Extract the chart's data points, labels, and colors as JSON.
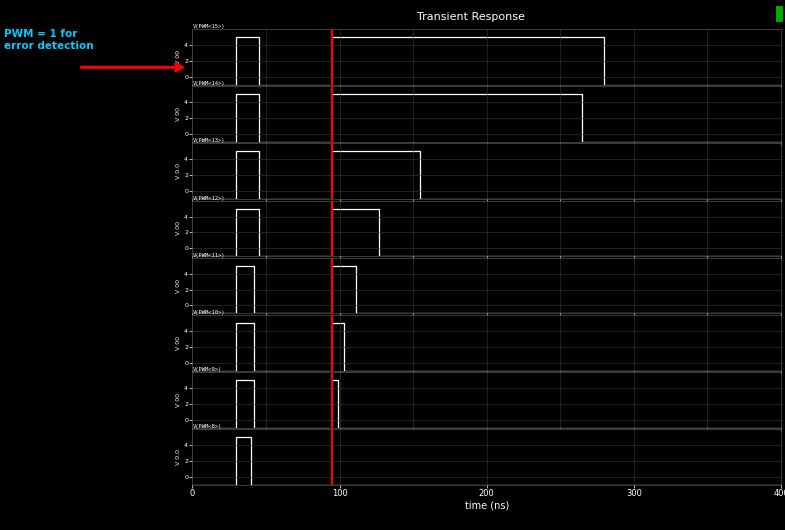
{
  "title": "Transient Response",
  "xlabel": "time (ns)",
  "background_color": "#000000",
  "plot_bg_color": "#000000",
  "signal_color": "#ffffff",
  "grid_color": "#3a3a3a",
  "x_min": 0,
  "x_max": 400,
  "red_line_x": 95,
  "annotation_text": "PWM = 1 for\nerror detection",
  "arrow_color": "#ff0000",
  "title_color": "#ffffff",
  "label_color": "#ffffff",
  "annot_color": "#00ccff",
  "green_box_color": "#00aa00",
  "subplots": [
    {
      "label": "V(PWM<15>)",
      "ylabel": "V 00",
      "y_min": -1,
      "y_max": 6,
      "yticks": [
        0,
        2,
        4
      ],
      "pulses": [
        {
          "start": 30,
          "end": 45,
          "low": -1,
          "high": 5
        },
        {
          "start": 95,
          "end": 280,
          "low": -1,
          "high": 5
        }
      ]
    },
    {
      "label": "V(PWM<14>)",
      "ylabel": "V 00",
      "y_min": -1,
      "y_max": 6,
      "yticks": [
        0,
        2,
        4
      ],
      "pulses": [
        {
          "start": 30,
          "end": 45,
          "low": -1,
          "high": 5
        },
        {
          "start": 95,
          "end": 265,
          "low": -1,
          "high": 5
        }
      ]
    },
    {
      "label": "V(PWM<13>)",
      "ylabel": "V 0.0",
      "y_min": -1,
      "y_max": 6,
      "yticks": [
        0,
        2,
        4
      ],
      "pulses": [
        {
          "start": 30,
          "end": 45,
          "low": -1,
          "high": 5
        },
        {
          "start": 95,
          "end": 155,
          "low": -1,
          "high": 5
        }
      ]
    },
    {
      "label": "V(PWM<12>)",
      "ylabel": "V 00",
      "y_min": -1,
      "y_max": 6,
      "yticks": [
        0,
        2,
        4
      ],
      "pulses": [
        {
          "start": 30,
          "end": 45,
          "low": -1,
          "high": 5
        },
        {
          "start": 95,
          "end": 127,
          "low": -1,
          "high": 5
        }
      ]
    },
    {
      "label": "V(PWM<11>)",
      "ylabel": "V 00",
      "y_min": -1,
      "y_max": 6,
      "yticks": [
        0,
        2,
        4
      ],
      "pulses": [
        {
          "start": 30,
          "end": 42,
          "low": -1,
          "high": 5
        },
        {
          "start": 95,
          "end": 111,
          "low": -1,
          "high": 5
        }
      ]
    },
    {
      "label": "V(PWM<10>)",
      "ylabel": "V 00",
      "y_min": -1,
      "y_max": 6,
      "yticks": [
        0,
        2,
        4
      ],
      "pulses": [
        {
          "start": 30,
          "end": 42,
          "low": -1,
          "high": 5
        },
        {
          "start": 95,
          "end": 103,
          "low": -1,
          "high": 5
        }
      ]
    },
    {
      "label": "V(PWM<9>)",
      "ylabel": "V 00",
      "y_min": -1,
      "y_max": 6,
      "yticks": [
        0,
        2,
        4
      ],
      "pulses": [
        {
          "start": 30,
          "end": 42,
          "low": -1,
          "high": 5
        },
        {
          "start": 95,
          "end": 99,
          "low": -1,
          "high": 5
        }
      ]
    },
    {
      "label": "V(PWM<8>)",
      "ylabel": "V 0.0",
      "y_min": -1,
      "y_max": 6,
      "yticks": [
        0,
        2,
        4
      ],
      "pulses": [
        {
          "start": 30,
          "end": 40,
          "low": -1,
          "high": 5
        }
      ]
    }
  ]
}
